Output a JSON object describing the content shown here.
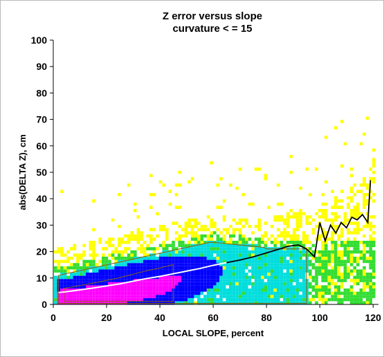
{
  "chart_data": {
    "type": "heatmap",
    "title": "Z error versus slope",
    "subtitle": "curvature < = 15",
    "xlabel": "LOCAL SLOPE, percent",
    "ylabel": "abs(DELTA Z), cm",
    "xlim": [
      0,
      122
    ],
    "ylim": [
      0,
      100
    ],
    "xticks": [
      "0",
      "20",
      "40",
      "60",
      "80",
      "100",
      "120"
    ],
    "yticks": [
      "0",
      "10",
      "20",
      "30",
      "40",
      "50",
      "60",
      "70",
      "80",
      "90",
      "100"
    ],
    "grid": false,
    "colors": {
      "low": "#ffff00",
      "low_mid": "#33dd33",
      "mid": "#00dddd",
      "mid_high": "#0000ff",
      "high": "#ff00ff",
      "contour": "#8b6508",
      "median_line_low": "#ffffff",
      "median_line_high": "#000000"
    },
    "series": [
      {
        "x": [
          2,
          5,
          10,
          15,
          20,
          25,
          30,
          35,
          40,
          45,
          50,
          55,
          60,
          65,
          70,
          75,
          80,
          85,
          88,
          92,
          95,
          98,
          100,
          102,
          104,
          106,
          108,
          110,
          112,
          114,
          116,
          118,
          119
        ],
        "values": [
          4.5,
          4.8,
          5.5,
          6.2,
          7.0,
          7.8,
          8.8,
          9.8,
          10.6,
          11.6,
          12.6,
          13.6,
          14.8,
          15.8,
          16.8,
          18.0,
          19.5,
          21.0,
          22.0,
          22.5,
          21.0,
          18.0,
          31.0,
          24.0,
          30.0,
          27.0,
          31.0,
          29.0,
          33.0,
          32.0,
          34.0,
          31.0,
          47.0
        ]
      }
    ]
  }
}
